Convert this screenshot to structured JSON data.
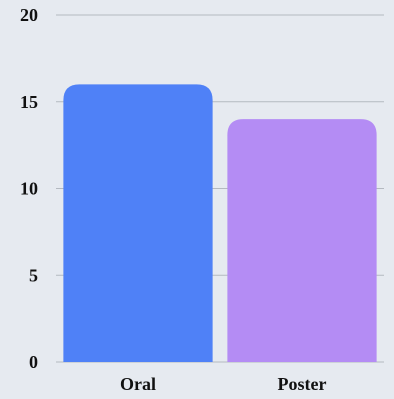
{
  "chart_data": {
    "type": "bar",
    "categories": [
      "Oral",
      "Poster"
    ],
    "values": [
      16,
      14
    ],
    "title": "",
    "xlabel": "",
    "ylabel": "",
    "ylim": [
      0,
      20
    ],
    "yticks": [
      0,
      5,
      10,
      15,
      20
    ],
    "grid": true,
    "legend": "none",
    "bar_colors": [
      "#4f81f7",
      "#b48cf4"
    ]
  },
  "colors": {
    "background": "#e6eaf0",
    "gridline": "#b4b9c0",
    "text": "#111111"
  }
}
